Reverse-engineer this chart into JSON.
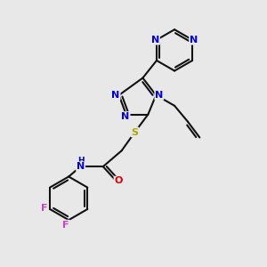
{
  "bg_color": "#e8e8e8",
  "colors": {
    "N": "#0000dd",
    "S": "#aaaa00",
    "O": "#dd0000",
    "F": "#cc44cc",
    "bond": "#111111"
  },
  "bond_lw": 1.5,
  "font_size": 8.0
}
